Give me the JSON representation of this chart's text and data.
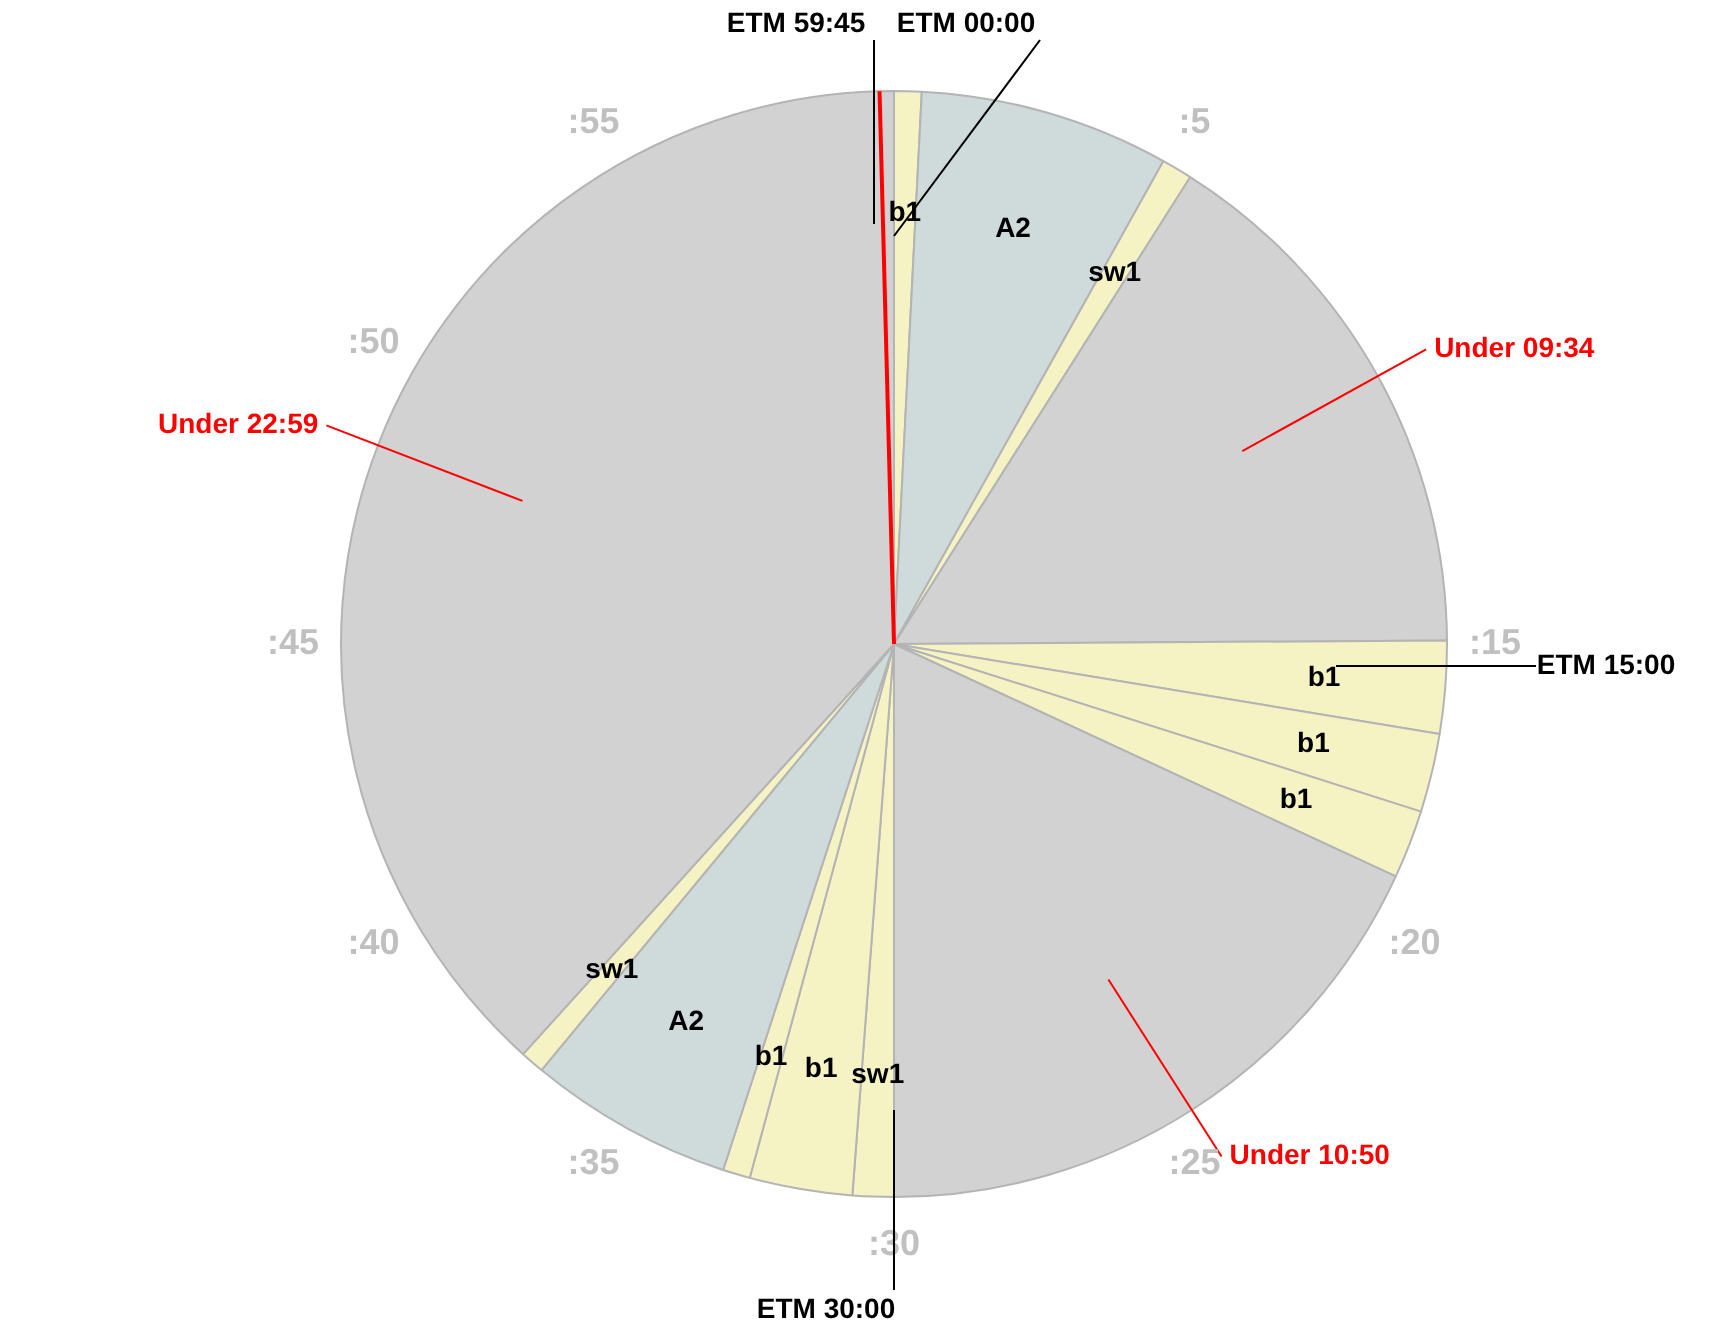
{
  "chart_data": {
    "type": "pie",
    "categories": [
      "b1",
      "A2",
      "sw1",
      "Under 09:34",
      "b1",
      "b1",
      "b1",
      "Under 10:50",
      "sw1",
      "b1",
      "b1",
      "A2",
      "sw1",
      "Under 22:59"
    ],
    "values": [
      0.8,
      7.3,
      0.9,
      15.9,
      2.7,
      2.3,
      2.0,
      18.1,
      1.2,
      3.0,
      0.8,
      6.0,
      0.7,
      38.3
    ],
    "colors": [
      "#f5f2c4",
      "#cfdada",
      "#f5f2c4",
      "#d2d2d2",
      "#f5f2c4",
      "#f5f2c4",
      "#f5f2c4",
      "#d2d2d2",
      "#f5f2c4",
      "#f5f2c4",
      "#f5f2c4",
      "#cfdada",
      "#f5f2c4",
      "#d2d2d2"
    ],
    "annotations": [
      ":5",
      ":15",
      ":20",
      ":25",
      ":30",
      ":35",
      ":40",
      ":45",
      ":50",
      ":55",
      "ETM 59:45",
      "ETM 00:00",
      "ETM 15:00",
      "ETM 30:00"
    ],
    "needle": "Under 22:59",
    "legend": false
  }
}
